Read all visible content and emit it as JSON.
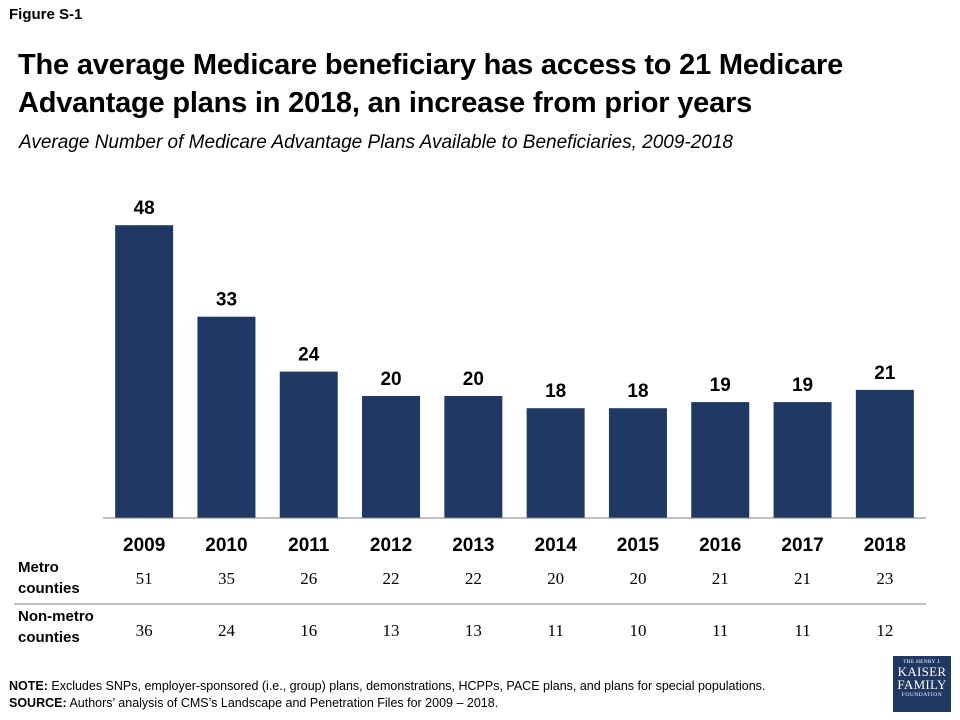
{
  "figure_label": "Figure S-1",
  "title": "The average Medicare beneficiary has access to 21 Medicare Advantage plans in 2018, an increase from prior years",
  "subtitle": "Average Number of Medicare Advantage Plans Available to Beneficiaries, 2009-2018",
  "colors": {
    "bar": "#1f3864",
    "rule": "#7f7f7f"
  },
  "chart_data": {
    "type": "bar",
    "categories": [
      "2009",
      "2010",
      "2011",
      "2012",
      "2013",
      "2014",
      "2015",
      "2016",
      "2017",
      "2018"
    ],
    "values": [
      48,
      33,
      24,
      20,
      20,
      18,
      18,
      19,
      19,
      21
    ],
    "data_labels": [
      "48",
      "33",
      "24",
      "20",
      "20",
      "18",
      "18",
      "19",
      "19",
      "21"
    ],
    "title": "Average Number of Medicare Advantage Plans Available to Beneficiaries, 2009-2018",
    "xlabel": "",
    "ylabel": "",
    "ylim": [
      0,
      55
    ],
    "grid": false,
    "legend": "none"
  },
  "table": {
    "rows": [
      {
        "label_line1": "Metro",
        "label_line2": "counties",
        "values": [
          "51",
          "35",
          "26",
          "22",
          "22",
          "20",
          "20",
          "21",
          "21",
          "23"
        ]
      },
      {
        "label_line1": "Non-metro",
        "label_line2": "counties",
        "values": [
          "36",
          "24",
          "16",
          "13",
          "13",
          "11",
          "10",
          "11",
          "11",
          "12"
        ]
      }
    ]
  },
  "note": {
    "note_label": "NOTE:",
    "note_text": " Excludes SNPs, employer-sponsored (i.e., group) plans, demonstrations, HCPPs, PACE plans, and plans for special populations.",
    "source_label": "SOURCE:",
    "source_text": " Authors’ analysis of CMS’s Landscape and Penetration Files for 2009 – 2018."
  },
  "logo": {
    "line1": "THE HENRY J.",
    "line2": "KAISER",
    "line3": "FAMILY",
    "line4": "FOUNDATION"
  }
}
